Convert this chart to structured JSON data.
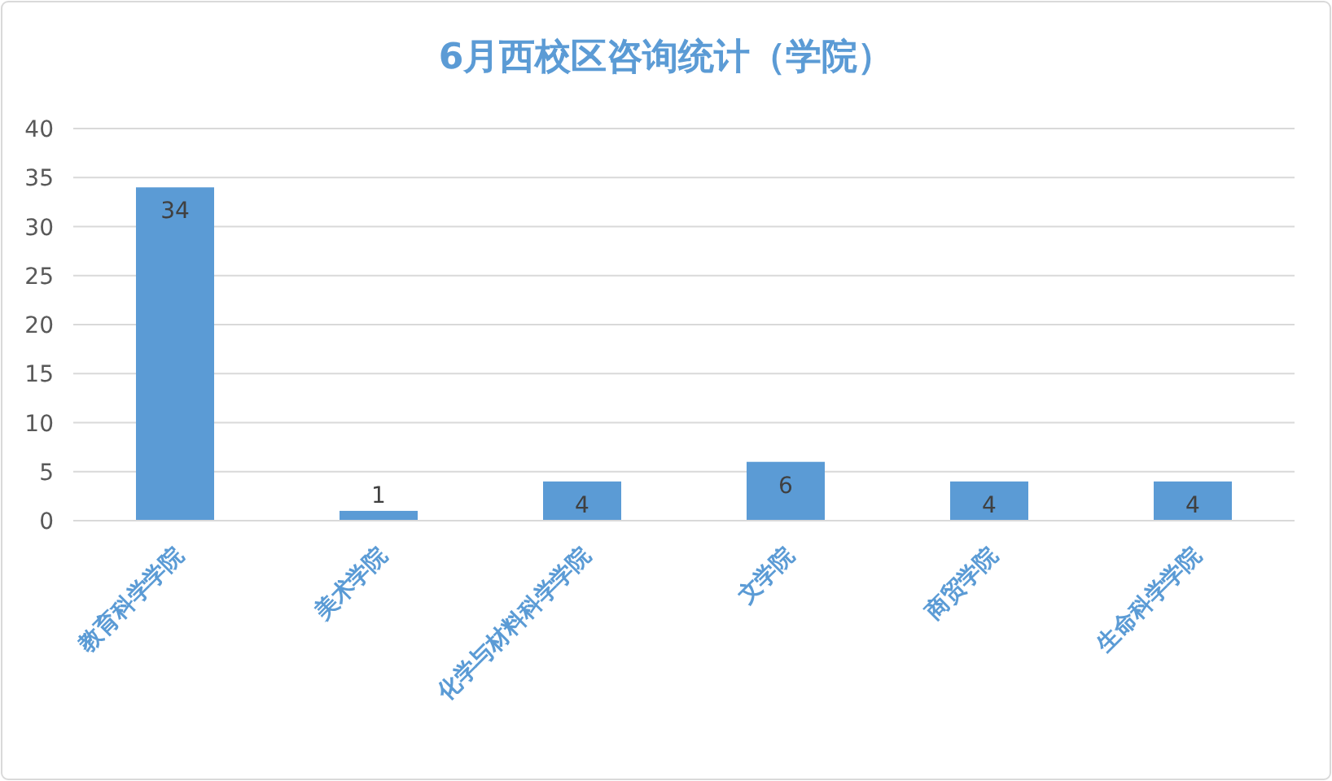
{
  "chart_data": {
    "type": "bar",
    "title": "6月西校区咨询统计（学院）",
    "categories": [
      "教育科学学院",
      "美术学院",
      "化学与材料科学学院",
      "文学院",
      "商贸学院",
      "生命科学学院"
    ],
    "values": [
      34,
      1,
      4,
      6,
      4,
      4
    ],
    "color": "#5b9bd5",
    "ylim": [
      0,
      40
    ],
    "yticks": [
      0,
      5,
      10,
      15,
      20,
      25,
      30,
      35,
      40
    ],
    "grid": "y",
    "data_labels": true
  }
}
